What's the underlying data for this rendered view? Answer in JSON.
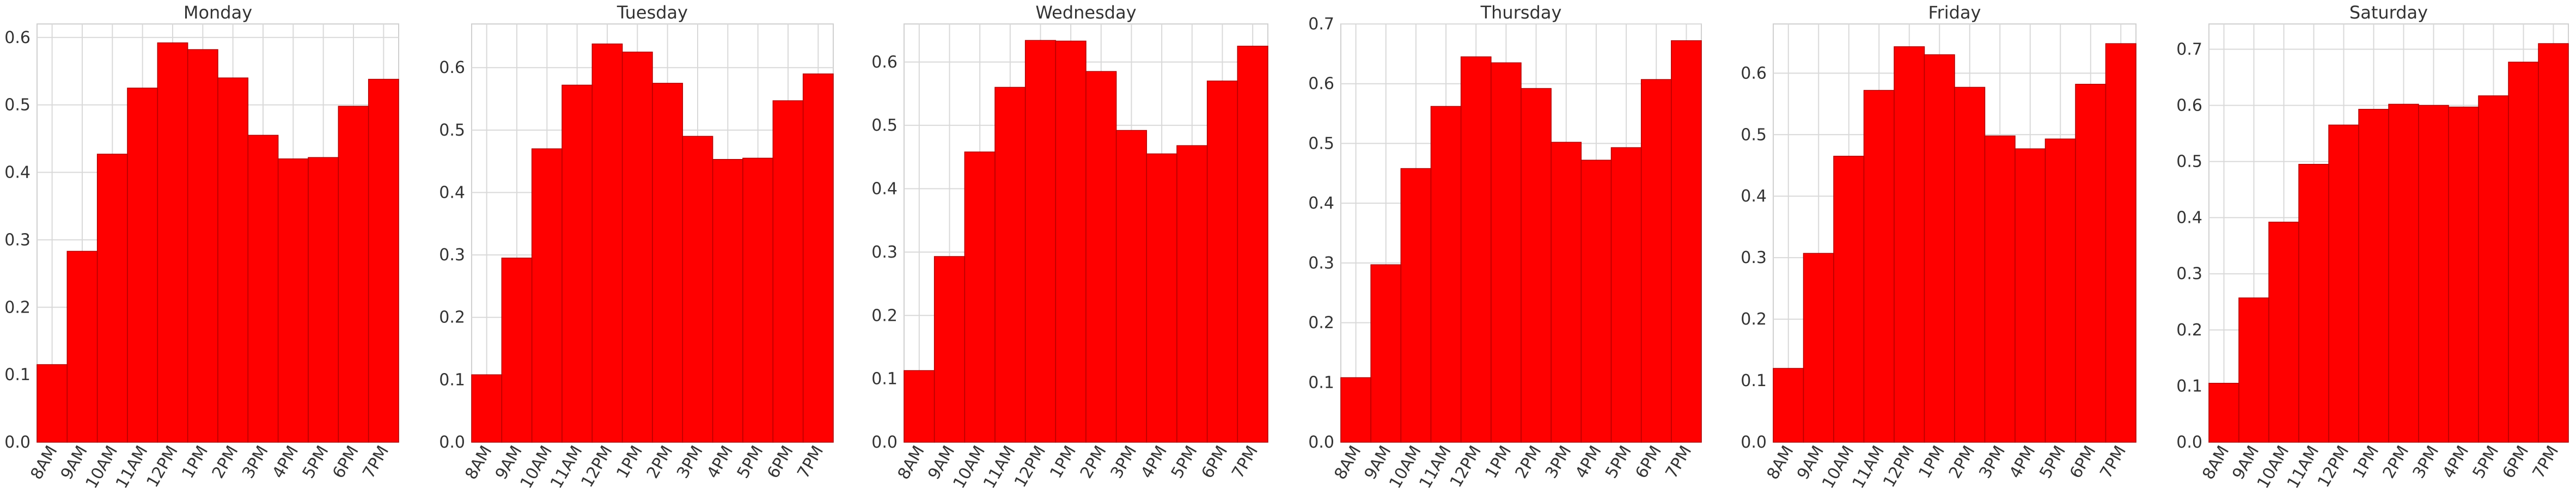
{
  "chart_data": [
    {
      "type": "bar",
      "title": "Monday",
      "categories": [
        "8AM",
        "9AM",
        "10AM",
        "11AM",
        "12PM",
        "1PM",
        "2PM",
        "3PM",
        "4PM",
        "5PM",
        "6PM",
        "7PM"
      ],
      "values": [
        0.115,
        0.283,
        0.427,
        0.525,
        0.592,
        0.582,
        0.54,
        0.455,
        0.42,
        0.422,
        0.498,
        0.538
      ],
      "ylim": [
        0,
        0.62
      ],
      "yticks": [
        0.0,
        0.1,
        0.2,
        0.3,
        0.4,
        0.5,
        0.6
      ],
      "ytick_labels": [
        "0.0",
        "0.1",
        "0.2",
        "0.3",
        "0.4",
        "0.5",
        "0.6"
      ],
      "xlabel": "",
      "ylabel": "",
      "grid": true,
      "color": "#ff0000"
    },
    {
      "type": "bar",
      "title": "Tuesday",
      "categories": [
        "8AM",
        "9AM",
        "10AM",
        "11AM",
        "12PM",
        "1PM",
        "2PM",
        "3PM",
        "4PM",
        "5PM",
        "6PM",
        "7PM"
      ],
      "values": [
        0.108,
        0.295,
        0.47,
        0.572,
        0.638,
        0.625,
        0.575,
        0.49,
        0.453,
        0.455,
        0.547,
        0.59
      ],
      "ylim": [
        0,
        0.67
      ],
      "yticks": [
        0.0,
        0.1,
        0.2,
        0.3,
        0.4,
        0.5,
        0.6
      ],
      "ytick_labels": [
        "0.0",
        "0.1",
        "0.2",
        "0.3",
        "0.4",
        "0.5",
        "0.6"
      ],
      "xlabel": "",
      "ylabel": "",
      "grid": true,
      "color": "#ff0000"
    },
    {
      "type": "bar",
      "title": "Wednesday",
      "categories": [
        "8AM",
        "9AM",
        "10AM",
        "11AM",
        "12PM",
        "1PM",
        "2PM",
        "3PM",
        "4PM",
        "5PM",
        "6PM",
        "7PM"
      ],
      "values": [
        0.113,
        0.293,
        0.458,
        0.56,
        0.634,
        0.633,
        0.585,
        0.492,
        0.455,
        0.468,
        0.57,
        0.625
      ],
      "ylim": [
        0,
        0.66
      ],
      "yticks": [
        0.0,
        0.1,
        0.2,
        0.3,
        0.4,
        0.5,
        0.6
      ],
      "ytick_labels": [
        "0.0",
        "0.1",
        "0.2",
        "0.3",
        "0.4",
        "0.5",
        "0.6"
      ],
      "xlabel": "",
      "ylabel": "",
      "grid": true,
      "color": "#ff0000"
    },
    {
      "type": "bar",
      "title": "Thursday",
      "categories": [
        "8AM",
        "9AM",
        "10AM",
        "11AM",
        "12PM",
        "1PM",
        "2PM",
        "3PM",
        "4PM",
        "5PM",
        "6PM",
        "7PM"
      ],
      "values": [
        0.108,
        0.297,
        0.458,
        0.562,
        0.645,
        0.635,
        0.592,
        0.502,
        0.472,
        0.493,
        0.607,
        0.672
      ],
      "ylim": [
        0,
        0.7
      ],
      "yticks": [
        0.0,
        0.1,
        0.2,
        0.3,
        0.4,
        0.5,
        0.6,
        0.7
      ],
      "ytick_labels": [
        "0.0",
        "0.1",
        "0.2",
        "0.3",
        "0.4",
        "0.5",
        "0.6",
        "0.7"
      ],
      "xlabel": "",
      "ylabel": "",
      "grid": true,
      "color": "#ff0000"
    },
    {
      "type": "bar",
      "title": "Friday",
      "categories": [
        "8AM",
        "9AM",
        "10AM",
        "11AM",
        "12PM",
        "1PM",
        "2PM",
        "3PM",
        "4PM",
        "5PM",
        "6PM",
        "7PM"
      ],
      "values": [
        0.12,
        0.307,
        0.465,
        0.572,
        0.643,
        0.63,
        0.577,
        0.498,
        0.477,
        0.493,
        0.582,
        0.648
      ],
      "ylim": [
        0,
        0.68
      ],
      "yticks": [
        0.0,
        0.1,
        0.2,
        0.3,
        0.4,
        0.5,
        0.6
      ],
      "ytick_labels": [
        "0.0",
        "0.1",
        "0.2",
        "0.3",
        "0.4",
        "0.5",
        "0.6"
      ],
      "xlabel": "",
      "ylabel": "",
      "grid": true,
      "color": "#ff0000"
    },
    {
      "type": "bar",
      "title": "Saturday",
      "categories": [
        "8AM",
        "9AM",
        "10AM",
        "11AM",
        "12PM",
        "1PM",
        "2PM",
        "3PM",
        "4PM",
        "5PM",
        "6PM",
        "7PM"
      ],
      "values": [
        0.105,
        0.257,
        0.392,
        0.495,
        0.565,
        0.593,
        0.602,
        0.6,
        0.597,
        0.617,
        0.677,
        0.71
      ],
      "ylim": [
        0,
        0.745
      ],
      "yticks": [
        0.0,
        0.1,
        0.2,
        0.3,
        0.4,
        0.5,
        0.6,
        0.7
      ],
      "ytick_labels": [
        "0.0",
        "0.1",
        "0.2",
        "0.3",
        "0.4",
        "0.5",
        "0.6",
        "0.7"
      ],
      "xlabel": "",
      "ylabel": "",
      "grid": true,
      "color": "#ff0000"
    }
  ]
}
